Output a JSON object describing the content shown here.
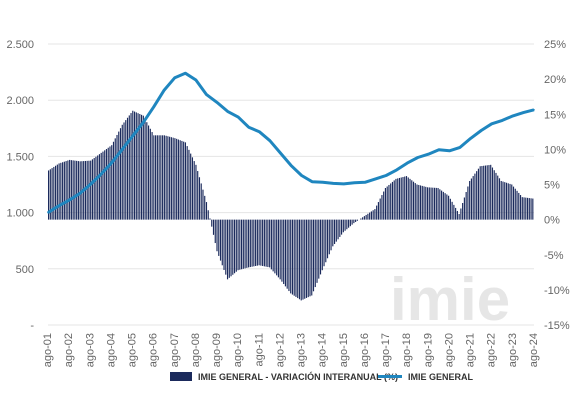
{
  "chart_data": {
    "type": "bar+line",
    "title": "",
    "xlabel": "",
    "ylabel_left": "",
    "ylabel_right": "",
    "watermark": "imie",
    "colors": {
      "bar": "#1b2a5c",
      "line": "#1f86bf",
      "grid": "#e5e5e5",
      "axis": "#555555"
    },
    "y_left": {
      "min": 0,
      "max": 2500,
      "ticks": [
        0,
        500,
        1000,
        1500,
        2000,
        2500
      ],
      "tick_labels": [
        "-",
        "500",
        "1.000",
        "1.500",
        "2.000",
        "2.500"
      ]
    },
    "y_right": {
      "min": -15,
      "max": 25,
      "ticks": [
        -15,
        -10,
        -5,
        0,
        5,
        10,
        15,
        20,
        25
      ],
      "tick_labels": [
        "-15%",
        "-10%",
        "-5%",
        "0%",
        "5%",
        "10%",
        "15%",
        "20%",
        "25%"
      ]
    },
    "x_ticks": [
      "ago-01",
      "ago-02",
      "ago-03",
      "ago-04",
      "ago-05",
      "ago-06",
      "ago-07",
      "ago-08",
      "ago-09",
      "ago-10",
      "ago-11",
      "ago-12",
      "ago-13",
      "ago-14",
      "ago-15",
      "ago-16",
      "ago-17",
      "ago-18",
      "ago-19",
      "ago-20",
      "ago-21",
      "ago-22",
      "ago-23",
      "ago-24"
    ],
    "grid": true,
    "legend_position": "bottom",
    "series": [
      {
        "name": "IMIE GENERAL - VARIACIÓN INTERANUAL (%)",
        "kind": "bar",
        "axis": "right",
        "x": [
          "ago-01",
          "feb-02",
          "ago-02",
          "feb-03",
          "ago-03",
          "feb-04",
          "ago-04",
          "feb-05",
          "ago-05",
          "feb-06",
          "ago-06",
          "feb-07",
          "ago-07",
          "feb-08",
          "ago-08",
          "feb-09",
          "ago-09",
          "feb-10",
          "ago-10",
          "feb-11",
          "ago-11",
          "feb-12",
          "ago-12",
          "feb-13",
          "ago-13",
          "feb-14",
          "ago-14",
          "feb-15",
          "ago-15",
          "feb-16",
          "ago-16",
          "feb-17",
          "ago-17",
          "feb-18",
          "ago-18",
          "feb-19",
          "ago-19",
          "feb-20",
          "ago-20",
          "feb-21",
          "ago-21",
          "feb-22",
          "ago-22",
          "feb-23",
          "ago-23",
          "feb-24",
          "ago-24"
        ],
        "values": [
          7.0,
          8.0,
          8.5,
          8.3,
          8.4,
          9.5,
          10.6,
          13.5,
          15.5,
          14.8,
          12.0,
          12.0,
          11.6,
          11.0,
          7.8,
          2.5,
          -4.5,
          -8.5,
          -7.2,
          -6.8,
          -6.5,
          -6.8,
          -8.5,
          -10.5,
          -11.5,
          -10.8,
          -7.2,
          -3.8,
          -1.8,
          -0.5,
          0.5,
          1.5,
          4.5,
          5.8,
          6.2,
          5.0,
          4.6,
          4.5,
          3.4,
          0.8,
          5.5,
          7.6,
          7.8,
          5.5,
          5.0,
          3.2,
          3.0
        ]
      },
      {
        "name": "IMIE GENERAL",
        "kind": "line",
        "axis": "left",
        "x": [
          "ago-01",
          "feb-02",
          "ago-02",
          "feb-03",
          "ago-03",
          "feb-04",
          "ago-04",
          "feb-05",
          "ago-05",
          "feb-06",
          "ago-06",
          "feb-07",
          "ago-07",
          "feb-08",
          "ago-08",
          "feb-09",
          "ago-09",
          "feb-10",
          "ago-10",
          "feb-11",
          "ago-11",
          "feb-12",
          "ago-12",
          "feb-13",
          "ago-13",
          "feb-14",
          "ago-14",
          "feb-15",
          "ago-15",
          "feb-16",
          "ago-16",
          "feb-17",
          "ago-17",
          "feb-18",
          "ago-18",
          "feb-19",
          "ago-19",
          "feb-20",
          "ago-20",
          "feb-21",
          "ago-21",
          "feb-22",
          "ago-22",
          "feb-23",
          "ago-23",
          "feb-24",
          "ago-24"
        ],
        "values": [
          1000,
          1060,
          1110,
          1170,
          1250,
          1340,
          1440,
          1560,
          1680,
          1800,
          1940,
          2090,
          2200,
          2240,
          2180,
          2050,
          1980,
          1900,
          1850,
          1760,
          1720,
          1640,
          1530,
          1420,
          1330,
          1275,
          1270,
          1260,
          1255,
          1265,
          1270,
          1300,
          1330,
          1380,
          1440,
          1490,
          1520,
          1560,
          1550,
          1580,
          1660,
          1730,
          1790,
          1820,
          1860,
          1890,
          1915
        ]
      }
    ]
  }
}
